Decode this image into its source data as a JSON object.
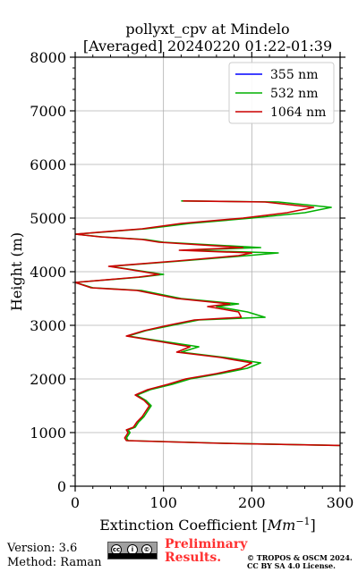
{
  "chart_data": {
    "type": "line",
    "title_line1": "pollyxt_cpv at Mindelo",
    "title_line2": "[Averaged] 20240220 01:22-01:39",
    "xlabel": "Extinction Coefficient [",
    "xlabel_unit": "Mm",
    "xlabel_exp": "−1",
    "xlabel_close": "]",
    "ylabel": "Height (m)",
    "xlim": [
      0,
      300
    ],
    "ylim": [
      0,
      8000
    ],
    "xticks": [
      0,
      100,
      200,
      300
    ],
    "yticks": [
      0,
      1000,
      2000,
      3000,
      4000,
      5000,
      6000,
      7000,
      8000
    ],
    "grid": true,
    "legend_position": "top-right",
    "series": [
      {
        "name": "355 nm",
        "color": "#0000ff",
        "points": []
      },
      {
        "name": "532 nm",
        "color": "#00b000",
        "points": [
          [
            300,
            760
          ],
          [
            170,
            800
          ],
          [
            60,
            850
          ],
          [
            58,
            900
          ],
          [
            62,
            1000
          ],
          [
            60,
            1050
          ],
          [
            68,
            1100
          ],
          [
            72,
            1200
          ],
          [
            78,
            1300
          ],
          [
            82,
            1400
          ],
          [
            86,
            1500
          ],
          [
            80,
            1600
          ],
          [
            70,
            1700
          ],
          [
            85,
            1800
          ],
          [
            110,
            1900
          ],
          [
            130,
            2000
          ],
          [
            165,
            2100
          ],
          [
            195,
            2200
          ],
          [
            210,
            2300
          ],
          [
            170,
            2400
          ],
          [
            120,
            2500
          ],
          [
            140,
            2600
          ],
          [
            100,
            2700
          ],
          [
            60,
            2800
          ],
          [
            80,
            2900
          ],
          [
            110,
            3000
          ],
          [
            140,
            3100
          ],
          [
            215,
            3150
          ],
          [
            195,
            3250
          ],
          [
            160,
            3350
          ],
          [
            185,
            3400
          ],
          [
            120,
            3500
          ],
          [
            75,
            3650
          ],
          [
            20,
            3700
          ],
          [
            0,
            3800
          ],
          [
            75,
            3900
          ],
          [
            100,
            3950
          ],
          [
            60,
            4050
          ],
          [
            40,
            4100
          ],
          [
            120,
            4200
          ],
          [
            195,
            4300
          ],
          [
            230,
            4350
          ],
          [
            125,
            4400
          ],
          [
            210,
            4450
          ],
          [
            100,
            4550
          ],
          [
            80,
            4600
          ],
          [
            30,
            4650
          ],
          [
            0,
            4700
          ],
          [
            80,
            4800
          ],
          [
            130,
            4900
          ],
          [
            200,
            5000
          ],
          [
            260,
            5100
          ],
          [
            290,
            5200
          ],
          [
            230,
            5300
          ],
          [
            120,
            5320
          ]
        ]
      },
      {
        "name": "1064 nm",
        "color": "#cc0000",
        "points": [
          [
            300,
            760
          ],
          [
            165,
            800
          ],
          [
            58,
            850
          ],
          [
            56,
            900
          ],
          [
            60,
            1000
          ],
          [
            58,
            1050
          ],
          [
            66,
            1100
          ],
          [
            70,
            1200
          ],
          [
            76,
            1300
          ],
          [
            80,
            1400
          ],
          [
            84,
            1500
          ],
          [
            78,
            1600
          ],
          [
            68,
            1700
          ],
          [
            82,
            1800
          ],
          [
            105,
            1900
          ],
          [
            125,
            2000
          ],
          [
            160,
            2100
          ],
          [
            188,
            2200
          ],
          [
            200,
            2300
          ],
          [
            165,
            2400
          ],
          [
            115,
            2500
          ],
          [
            130,
            2600
          ],
          [
            95,
            2700
          ],
          [
            58,
            2800
          ],
          [
            78,
            2900
          ],
          [
            105,
            3000
          ],
          [
            135,
            3100
          ],
          [
            188,
            3150
          ],
          [
            185,
            3250
          ],
          [
            150,
            3350
          ],
          [
            175,
            3400
          ],
          [
            115,
            3500
          ],
          [
            70,
            3650
          ],
          [
            18,
            3700
          ],
          [
            0,
            3800
          ],
          [
            72,
            3900
          ],
          [
            95,
            3950
          ],
          [
            58,
            4050
          ],
          [
            38,
            4100
          ],
          [
            115,
            4200
          ],
          [
            185,
            4300
          ],
          [
            200,
            4350
          ],
          [
            118,
            4400
          ],
          [
            190,
            4450
          ],
          [
            95,
            4550
          ],
          [
            76,
            4600
          ],
          [
            28,
            4650
          ],
          [
            0,
            4700
          ],
          [
            76,
            4800
          ],
          [
            120,
            4900
          ],
          [
            190,
            5000
          ],
          [
            240,
            5100
          ],
          [
            270,
            5200
          ],
          [
            215,
            5300
          ],
          [
            122,
            5320
          ]
        ]
      }
    ]
  },
  "footer": {
    "version": "Version: 3.6",
    "method": "Method: Raman",
    "prelim_line1": "Preliminary",
    "prelim_line2": "Results.",
    "copyright": "© TROPOS & OSCM 2024.",
    "license": "CC BY SA 4.0 License."
  }
}
